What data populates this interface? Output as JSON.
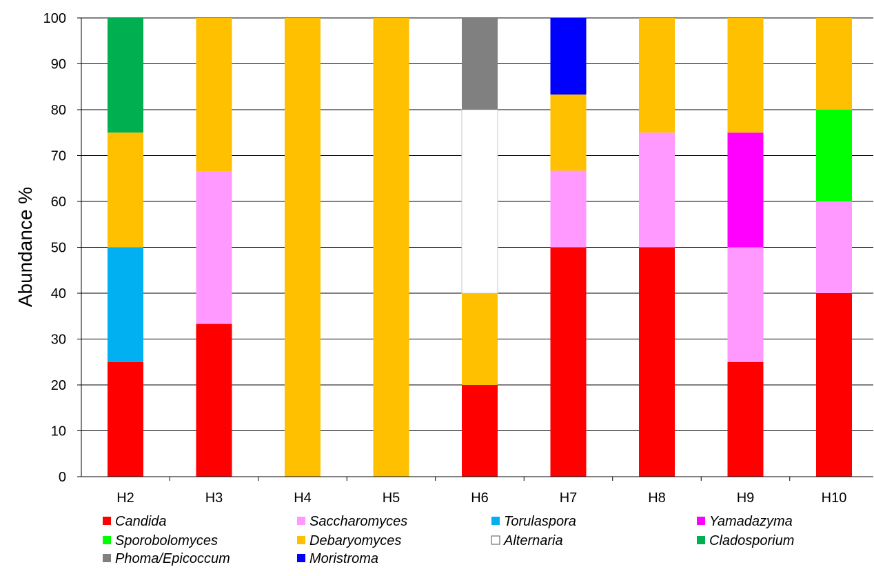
{
  "chart_data": {
    "type": "bar",
    "stacked": true,
    "categories": [
      "H2",
      "H3",
      "H4",
      "H5",
      "H6",
      "H7",
      "H8",
      "H9",
      "H10"
    ],
    "ylabel": "Abundance %",
    "xlabel": "",
    "ylim": [
      0,
      100
    ],
    "yticks": [
      0,
      10,
      20,
      30,
      40,
      50,
      60,
      70,
      80,
      90,
      100
    ],
    "grid": "horizontal",
    "legend_position": "bottom",
    "series": [
      {
        "name": "Candida",
        "color": "#ff0000",
        "values": [
          25,
          33.3,
          0,
          0,
          20,
          50,
          50,
          25,
          40
        ]
      },
      {
        "name": "Saccharomyces",
        "color": "#ff99ff",
        "values": [
          0,
          33.3,
          0,
          0,
          0,
          16.7,
          25,
          25,
          20
        ]
      },
      {
        "name": "Torulaspora",
        "color": "#00b0f0",
        "values": [
          25,
          0,
          0,
          0,
          0,
          0,
          0,
          0,
          0
        ]
      },
      {
        "name": "Yamadazyma",
        "color": "#ff00ff",
        "values": [
          0,
          0,
          0,
          0,
          0,
          0,
          0,
          25,
          0
        ]
      },
      {
        "name": "Sporobolomyces",
        "color": "#00ff00",
        "values": [
          0,
          0,
          0,
          0,
          0,
          0,
          0,
          0,
          20
        ]
      },
      {
        "name": "Debaryomyces",
        "color": "#ffc000",
        "values": [
          25,
          33.4,
          100,
          100,
          20,
          16.6,
          25,
          25,
          20
        ]
      },
      {
        "name": "Alternaria",
        "color": "#ffffff",
        "values": [
          0,
          0,
          0,
          0,
          40,
          0,
          0,
          0,
          0
        ]
      },
      {
        "name": "Cladosporium",
        "color": "#00b050",
        "values": [
          25,
          0,
          0,
          0,
          0,
          0,
          0,
          0,
          0
        ]
      },
      {
        "name": "Phoma/Epicoccum",
        "color": "#808080",
        "values": [
          0,
          0,
          0,
          0,
          20,
          0,
          0,
          0,
          0
        ]
      },
      {
        "name": "Moristroma",
        "color": "#0000ff",
        "values": [
          0,
          0,
          0,
          0,
          0,
          16.7,
          0,
          0,
          0
        ]
      }
    ],
    "stack_order": [
      [
        "Candida",
        "Torulaspora",
        "Debaryomyces",
        "Cladosporium"
      ],
      [
        "Candida",
        "Saccharomyces",
        "Debaryomyces"
      ],
      [
        "Debaryomyces"
      ],
      [
        "Debaryomyces"
      ],
      [
        "Candida",
        "Debaryomyces",
        "Alternaria",
        "Phoma/Epicoccum"
      ],
      [
        "Candida",
        "Saccharomyces",
        "Debaryomyces",
        "Moristroma"
      ],
      [
        "Candida",
        "Saccharomyces",
        "Debaryomyces"
      ],
      [
        "Candida",
        "Saccharomyces",
        "Yamadazyma",
        "Debaryomyces"
      ],
      [
        "Candida",
        "Saccharomyces",
        "Sporobolomyces",
        "Debaryomyces"
      ]
    ],
    "legend_order": [
      "Candida",
      "Saccharomyces",
      "Torulaspora",
      "Yamadazyma",
      "Sporobolomyces",
      "Debaryomyces",
      "Alternaria",
      "Cladosporium",
      "Phoma/Epicoccum",
      "Moristroma"
    ]
  }
}
